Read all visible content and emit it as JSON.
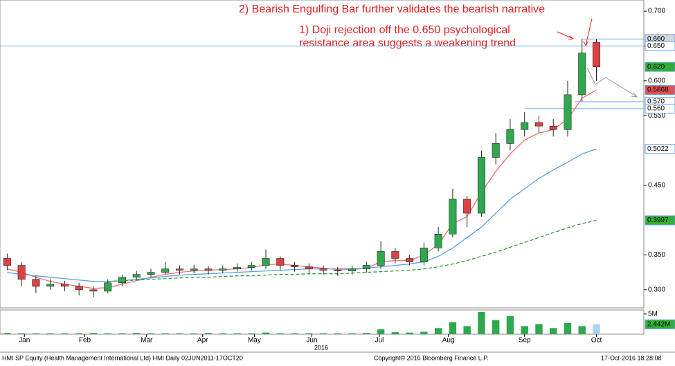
{
  "chart_data": {
    "type": "candlestick",
    "annotations": [
      "2) Bearish Engulfing Bar further validates the bearish narrative",
      "1) Doji rejection off the 0.650 psychological",
      "resistance area suggests a weakening trend"
    ],
    "footer_left": "HMI SP Equity (Health Management International Ltd) HMI  Daily 02JUN2011-17OCT20",
    "footer_center": "Copyright© 2016 Bloomberg Finance L.P.",
    "footer_right": "17-Oct-2016 18:28:08",
    "year_label": "2016",
    "xlim": [
      -0.5,
      44.3
    ],
    "xticks": [
      {
        "value": 1.2,
        "label": "Jan"
      },
      {
        "value": 5.4,
        "label": "Feb"
      },
      {
        "value": 9.7,
        "label": "Mar"
      },
      {
        "value": 13.6,
        "label": "Apr"
      },
      {
        "value": 17.2,
        "label": "May"
      },
      {
        "value": 21.2,
        "label": "Jun"
      },
      {
        "value": 25.9,
        "label": "Jul"
      },
      {
        "value": 30.7,
        "label": "Aug"
      },
      {
        "value": 36,
        "label": "Sep"
      },
      {
        "value": 41,
        "label": "Oct"
      }
    ],
    "ylim": [
      0.274,
      0.716
    ],
    "yticks": [
      {
        "value": 0.7,
        "label": "0.700"
      },
      {
        "value": 0.65,
        "label": "0.650"
      },
      {
        "value": 0.6,
        "label": "0.600"
      },
      {
        "value": 0.55,
        "label": "0.550"
      },
      {
        "value": 0.45,
        "label": "0.450"
      },
      {
        "value": 0.35,
        "label": "0.350"
      },
      {
        "value": 0.3,
        "label": "0.300"
      }
    ],
    "up_color": "#2fa84f",
    "down_color": "#e04040",
    "open": [
      0.345,
      0.335,
      0.315,
      0.305,
      0.308,
      0.305,
      0.3,
      0.298,
      0.31,
      0.318,
      0.322,
      0.325,
      0.33,
      0.328,
      0.33,
      0.328,
      0.33,
      0.332,
      0.335,
      0.345,
      0.335,
      0.333,
      0.33,
      0.328,
      0.327,
      0.33,
      0.335,
      0.355,
      0.345,
      0.34,
      0.36,
      0.38,
      0.43,
      0.41,
      0.49,
      0.51,
      0.53,
      0.54,
      0.535,
      0.53,
      0.58,
      0.655
    ],
    "high": [
      0.352,
      0.34,
      0.32,
      0.315,
      0.313,
      0.31,
      0.305,
      0.315,
      0.322,
      0.327,
      0.33,
      0.34,
      0.335,
      0.336,
      0.334,
      0.335,
      0.338,
      0.34,
      0.358,
      0.348,
      0.34,
      0.338,
      0.335,
      0.333,
      0.335,
      0.34,
      0.37,
      0.36,
      0.35,
      0.368,
      0.39,
      0.445,
      0.435,
      0.5,
      0.525,
      0.545,
      0.555,
      0.55,
      0.545,
      0.6,
      0.66,
      0.66
    ],
    "low": [
      0.328,
      0.305,
      0.295,
      0.3,
      0.298,
      0.292,
      0.29,
      0.295,
      0.305,
      0.315,
      0.318,
      0.322,
      0.322,
      0.324,
      0.322,
      0.324,
      0.326,
      0.328,
      0.33,
      0.328,
      0.326,
      0.324,
      0.322,
      0.32,
      0.322,
      0.325,
      0.33,
      0.338,
      0.335,
      0.335,
      0.355,
      0.375,
      0.39,
      0.405,
      0.48,
      0.5,
      0.52,
      0.525,
      0.52,
      0.52,
      0.57,
      0.6
    ],
    "close": [
      0.335,
      0.315,
      0.305,
      0.308,
      0.305,
      0.3,
      0.298,
      0.31,
      0.318,
      0.322,
      0.325,
      0.33,
      0.328,
      0.33,
      0.328,
      0.33,
      0.332,
      0.335,
      0.345,
      0.335,
      0.333,
      0.33,
      0.328,
      0.327,
      0.33,
      0.335,
      0.355,
      0.345,
      0.34,
      0.36,
      0.38,
      0.43,
      0.41,
      0.49,
      0.51,
      0.53,
      0.54,
      0.535,
      0.53,
      0.58,
      0.64,
      0.62
    ],
    "series": [
      {
        "color": "#f07070",
        "dash": false,
        "values": [
          0.33,
          0.325,
          0.318,
          0.312,
          0.308,
          0.305,
          0.302,
          0.303,
          0.308,
          0.313,
          0.318,
          0.322,
          0.325,
          0.327,
          0.328,
          0.329,
          0.33,
          0.332,
          0.336,
          0.337,
          0.335,
          0.333,
          0.331,
          0.329,
          0.329,
          0.331,
          0.34,
          0.342,
          0.342,
          0.35,
          0.365,
          0.395,
          0.405,
          0.44,
          0.47,
          0.495,
          0.515,
          0.525,
          0.53,
          0.545,
          0.575,
          0.5868
        ]
      },
      {
        "color": "#5aa0e8",
        "dash": false,
        "values": [
          0.325,
          0.322,
          0.32,
          0.318,
          0.316,
          0.314,
          0.312,
          0.312,
          0.313,
          0.315,
          0.317,
          0.319,
          0.321,
          0.322,
          0.323,
          0.324,
          0.325,
          0.326,
          0.327,
          0.328,
          0.329,
          0.33,
          0.33,
          0.33,
          0.33,
          0.331,
          0.333,
          0.335,
          0.337,
          0.34,
          0.348,
          0.36,
          0.375,
          0.39,
          0.41,
          0.43,
          0.445,
          0.46,
          0.472,
          0.483,
          0.495,
          0.5022
        ]
      },
      {
        "color": "#2e9a3a",
        "dash": true,
        "values": [
          null,
          null,
          null,
          null,
          null,
          null,
          null,
          0.312,
          0.313,
          0.314,
          0.315,
          0.316,
          0.317,
          0.318,
          0.318,
          0.319,
          0.32,
          0.32,
          0.321,
          0.322,
          0.322,
          0.323,
          0.323,
          0.323,
          0.324,
          0.325,
          0.326,
          0.327,
          0.328,
          0.33,
          0.333,
          0.337,
          0.342,
          0.348,
          0.354,
          0.361,
          0.368,
          0.375,
          0.382,
          0.389,
          0.395,
          0.3997
        ]
      }
    ],
    "levels": [
      {
        "value": 0.65,
        "start": -0.5,
        "color": "#5aa0e8"
      },
      {
        "value": 0.66,
        "start": 40,
        "color": "#5aa0e8"
      },
      {
        "value": 0.57,
        "start": 39.5,
        "color": "#5aa0e8"
      },
      {
        "value": 0.56,
        "start": 36,
        "color": "#5aa0e8"
      }
    ],
    "price_tags": [
      {
        "value": 0.66,
        "label": "0.660",
        "color": "#d8d8d8"
      },
      {
        "value": 0.65,
        "label": "0.650",
        "color": "#ffffff"
      },
      {
        "value": 0.62,
        "label": "0.620",
        "color": "#30b030"
      },
      {
        "value": 0.5868,
        "label": "0.5868",
        "color": "#e05050"
      },
      {
        "value": 0.57,
        "label": "0.570",
        "color": "#ffffff"
      },
      {
        "value": 0.56,
        "label": "0.560",
        "color": "#ffffff"
      },
      {
        "value": 0.5022,
        "label": "0.5022",
        "color": "#ffffff"
      },
      {
        "value": 0.3997,
        "label": "0.3997",
        "color": "#30b030"
      }
    ],
    "volume": {
      "ylim": [
        0,
        6
      ],
      "yticks": [
        {
          "value": 5,
          "label": "5M"
        }
      ],
      "values": [
        0.3,
        0.2,
        0.2,
        0.2,
        0.2,
        0.2,
        0.3,
        0.2,
        0.2,
        0.3,
        0.2,
        0.2,
        0.2,
        0.2,
        0.3,
        0.2,
        0.2,
        0.2,
        0.4,
        0.2,
        0.2,
        0.2,
        0.2,
        0.2,
        0.2,
        0.3,
        1.2,
        0.5,
        0.4,
        0.6,
        1.5,
        3.0,
        2.0,
        5.5,
        3.5,
        4.5,
        2.0,
        2.5,
        1.5,
        2.8,
        2.0,
        2.442
      ],
      "tag": {
        "value": 2.442,
        "label": "2.442M",
        "color": "#30b030"
      }
    }
  }
}
